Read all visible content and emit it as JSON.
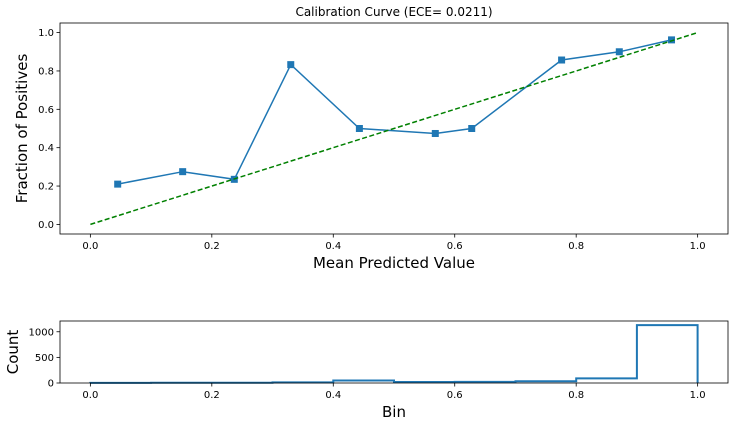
{
  "chart_data": [
    {
      "type": "line",
      "title": "Calibration Curve (ECE= 0.0211)",
      "xlabel": "Mean Predicted Value",
      "ylabel": "Fraction of Positives",
      "xlim": [
        -0.05,
        1.05
      ],
      "ylim": [
        -0.05,
        1.05
      ],
      "xticks": [
        "0.0",
        "0.2",
        "0.4",
        "0.6",
        "0.8",
        "1.0"
      ],
      "yticks": [
        "0.0",
        "0.2",
        "0.4",
        "0.6",
        "0.8",
        "1.0"
      ],
      "grid": false,
      "series": [
        {
          "style": "line-square-markers",
          "color": "#1f77b4",
          "x": [
            0.045,
            0.152,
            0.237,
            0.33,
            0.443,
            0.568,
            0.628,
            0.776,
            0.871,
            0.957
          ],
          "y": [
            0.21,
            0.275,
            0.235,
            0.833,
            0.5,
            0.474,
            0.5,
            0.857,
            0.9,
            0.962
          ]
        },
        {
          "style": "dashed",
          "color": "#008000",
          "x": [
            0.0,
            1.0
          ],
          "y": [
            0.0,
            1.0
          ]
        }
      ]
    },
    {
      "type": "histogram",
      "title": "",
      "xlabel": "Bin",
      "ylabel": "Count",
      "xlim": [
        -0.05,
        1.05
      ],
      "ylim": [
        0,
        1210
      ],
      "xticks": [
        "0.0",
        "0.2",
        "0.4",
        "0.6",
        "0.8",
        "1.0"
      ],
      "yticks": [
        "0",
        "500",
        "1000"
      ],
      "grid": false,
      "color": "#1f77b4",
      "bins": [
        0.0,
        0.1,
        0.2,
        0.3,
        0.4,
        0.5,
        0.6,
        0.7,
        0.8,
        0.9,
        1.0
      ],
      "values": [
        2,
        3,
        5,
        12,
        48,
        20,
        22,
        36,
        90,
        1130
      ]
    }
  ]
}
